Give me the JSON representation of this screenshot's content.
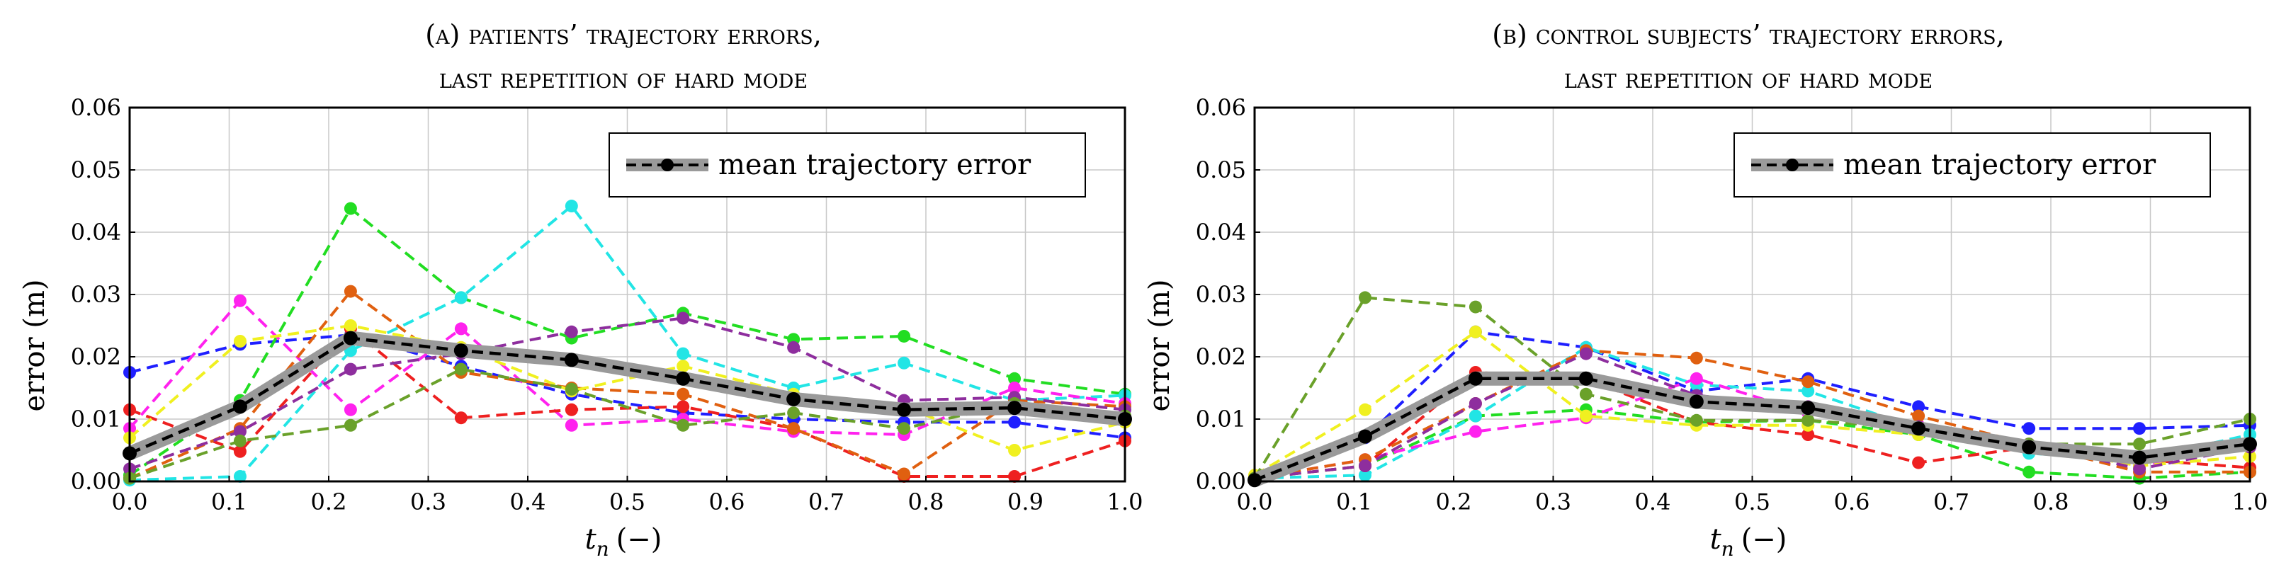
{
  "chart_data": [
    {
      "type": "line",
      "title_line1": "(a) patients’ trajectory errors,",
      "title_line2": "last repetition of hard mode",
      "xlabel": "t",
      "xlabel_sub": "n",
      "xlabel_unit": "(−)",
      "ylabel": "error (m)",
      "xlim": [
        0,
        1
      ],
      "ylim": [
        0,
        0.06
      ],
      "xticks": [
        0.0,
        0.1,
        0.2,
        0.3,
        0.4,
        0.5,
        0.6,
        0.7,
        0.8,
        0.9,
        1.0
      ],
      "xtick_labels": [
        "0.0",
        "0.1",
        "0.2",
        "0.3",
        "0.4",
        "0.5",
        "0.6",
        "0.7",
        "0.8",
        "0.9",
        "1.0"
      ],
      "yticks": [
        0,
        0.01,
        0.02,
        0.03,
        0.04,
        0.05,
        0.06
      ],
      "ytick_labels": [
        "0.00",
        "0.01",
        "0.02",
        "0.03",
        "0.04",
        "0.05",
        "0.06"
      ],
      "grid": true,
      "legend": {
        "label": "mean trajectory error",
        "position": "top-right"
      },
      "x": [
        0.0,
        0.111,
        0.222,
        0.333,
        0.444,
        0.556,
        0.667,
        0.778,
        0.889,
        1.0
      ],
      "series": [
        {
          "name": "subject-blue",
          "color": "#1f1fff",
          "values": [
            0.0175,
            0.022,
            0.0235,
            0.0185,
            0.014,
            0.011,
            0.01,
            0.0095,
            0.0095,
            0.007
          ]
        },
        {
          "name": "subject-green",
          "color": "#22dd22",
          "values": [
            0.001,
            0.013,
            0.0438,
            0.0295,
            0.023,
            0.027,
            0.0228,
            0.0233,
            0.0165,
            0.014
          ]
        },
        {
          "name": "subject-cyan",
          "color": "#22e5e5",
          "values": [
            0.0002,
            0.0008,
            0.021,
            0.0295,
            0.0442,
            0.0205,
            0.015,
            0.019,
            0.013,
            0.0138
          ]
        },
        {
          "name": "subject-magenta",
          "color": "#ff22ee",
          "values": [
            0.0085,
            0.029,
            0.0115,
            0.0245,
            0.009,
            0.01,
            0.008,
            0.0075,
            0.015,
            0.0125
          ]
        },
        {
          "name": "subject-red",
          "color": "#ee2020",
          "values": [
            0.0115,
            0.0048,
            0.0245,
            0.0102,
            0.0115,
            0.012,
            0.0085,
            0.0008,
            0.0008,
            0.0065
          ]
        },
        {
          "name": "subject-orange",
          "color": "#e06010",
          "values": [
            0.0005,
            0.0085,
            0.0305,
            0.0175,
            0.015,
            0.014,
            0.0085,
            0.0012,
            0.013,
            0.012
          ]
        },
        {
          "name": "subject-yellow",
          "color": "#f0f020",
          "values": [
            0.007,
            0.0225,
            0.025,
            0.0215,
            0.0145,
            0.0185,
            0.014,
            0.012,
            0.005,
            0.0095
          ]
        },
        {
          "name": "subject-purple",
          "color": "#8e2e9e",
          "values": [
            0.002,
            0.008,
            0.018,
            0.0205,
            0.024,
            0.0262,
            0.0215,
            0.013,
            0.0135,
            0.0115
          ]
        },
        {
          "name": "subject-olive",
          "color": "#6aa12a",
          "values": [
            0.0005,
            0.0065,
            0.009,
            0.018,
            0.0148,
            0.009,
            0.011,
            0.0085,
            0.0125,
            0.0105
          ]
        }
      ],
      "mean": {
        "name": "mean trajectory error",
        "values": [
          0.0045,
          0.012,
          0.023,
          0.021,
          0.0195,
          0.0165,
          0.0132,
          0.0115,
          0.0118,
          0.01
        ]
      }
    },
    {
      "type": "line",
      "title_line1": "(b) control subjects’ trajectory errors,",
      "title_line2": "last repetition of hard mode",
      "xlabel": "t",
      "xlabel_sub": "n",
      "xlabel_unit": "(−)",
      "ylabel": "error (m)",
      "xlim": [
        0,
        1
      ],
      "ylim": [
        0,
        0.06
      ],
      "xticks": [
        0.0,
        0.1,
        0.2,
        0.3,
        0.4,
        0.5,
        0.6,
        0.7,
        0.8,
        0.9,
        1.0
      ],
      "xtick_labels": [
        "0.0",
        "0.1",
        "0.2",
        "0.3",
        "0.4",
        "0.5",
        "0.6",
        "0.7",
        "0.8",
        "0.9",
        "1.0"
      ],
      "yticks": [
        0,
        0.01,
        0.02,
        0.03,
        0.04,
        0.05,
        0.06
      ],
      "ytick_labels": [
        "0.00",
        "0.01",
        "0.02",
        "0.03",
        "0.04",
        "0.05",
        "0.06"
      ],
      "grid": true,
      "legend": {
        "label": "mean trajectory error",
        "position": "top-right"
      },
      "x": [
        0.0,
        0.111,
        0.222,
        0.333,
        0.444,
        0.556,
        0.667,
        0.778,
        0.889,
        1.0
      ],
      "series": [
        {
          "name": "subject-blue",
          "color": "#1f1fff",
          "values": [
            0.0005,
            0.007,
            0.024,
            0.0215,
            0.0145,
            0.0165,
            0.012,
            0.0085,
            0.0085,
            0.009
          ]
        },
        {
          "name": "subject-green",
          "color": "#22dd22",
          "values": [
            0.0005,
            0.0025,
            0.0105,
            0.0115,
            0.0095,
            0.0098,
            0.0075,
            0.0015,
            0.0005,
            0.0015
          ]
        },
        {
          "name": "subject-cyan",
          "color": "#22e5e5",
          "values": [
            0.0005,
            0.001,
            0.0105,
            0.0215,
            0.0155,
            0.0145,
            0.0085,
            0.0045,
            0.0035,
            0.0075
          ]
        },
        {
          "name": "subject-magenta",
          "color": "#ff22ee",
          "values": [
            0.0005,
            0.0035,
            0.008,
            0.0102,
            0.0165,
            0.011,
            0.009,
            0.006,
            0.0025,
            0.006
          ]
        },
        {
          "name": "subject-red",
          "color": "#ee2020",
          "values": [
            0.0005,
            0.0025,
            0.0175,
            0.0165,
            0.0095,
            0.0075,
            0.003,
            0.0055,
            0.0035,
            0.0022
          ]
        },
        {
          "name": "subject-orange",
          "color": "#e06010",
          "values": [
            0.0005,
            0.0035,
            0.0125,
            0.021,
            0.0198,
            0.016,
            0.0105,
            0.006,
            0.0015,
            0.0015
          ]
        },
        {
          "name": "subject-yellow",
          "color": "#f0f020",
          "values": [
            0.001,
            0.0115,
            0.024,
            0.0105,
            0.009,
            0.009,
            0.0075,
            0.0055,
            0.0025,
            0.004
          ]
        },
        {
          "name": "subject-purple",
          "color": "#8e2e9e",
          "values": [
            0.0005,
            0.0025,
            0.0125,
            0.0205,
            0.0138,
            0.012,
            0.0088,
            0.006,
            0.002,
            0.0055
          ]
        },
        {
          "name": "subject-olive",
          "color": "#6aa12a",
          "values": [
            0.0005,
            0.0295,
            0.028,
            0.014,
            0.0098,
            0.0098,
            0.0085,
            0.006,
            0.006,
            0.01
          ]
        }
      ],
      "mean": {
        "name": "mean trajectory error",
        "values": [
          0.0002,
          0.0072,
          0.0165,
          0.0165,
          0.0128,
          0.0118,
          0.0085,
          0.0055,
          0.0038,
          0.006
        ]
      }
    }
  ]
}
